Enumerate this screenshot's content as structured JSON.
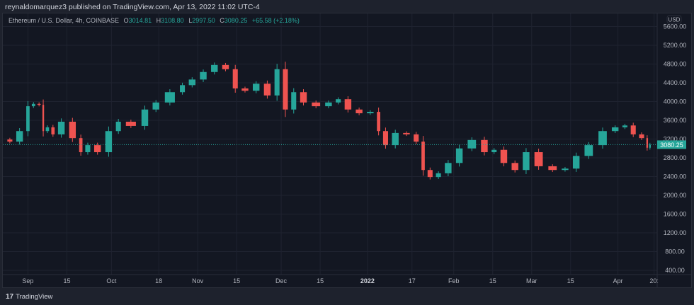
{
  "publish_line": "reynaldomarquez3 published on TradingView.com, Apr 13, 2022 11:02 UTC-4",
  "legend": {
    "symbol": "Ethereum / U.S. Dollar, 4h, COINBASE",
    "o_label": "O",
    "o": "3014.81",
    "h_label": "H",
    "h": "3108.80",
    "l_label": "L",
    "l": "2997.50",
    "c_label": "C",
    "c": "3080.25",
    "change": "+65.58 (+2.18%)"
  },
  "footer": {
    "logo": "17",
    "brand": "TradingView",
    "icon": "tradingview-logo-icon"
  },
  "colors": {
    "up": "#26a69a",
    "down": "#ef5350",
    "background": "#131722",
    "grid": "#1f2330",
    "last_price": "#26a69a"
  },
  "chart_data": {
    "type": "candlestick",
    "currency_label": "USD",
    "last_price_label": "3080.25",
    "last_price": 3080.25,
    "ylim": [
      400,
      5600
    ],
    "y_ticks": [
      "5600.00",
      "5200.00",
      "4800.00",
      "4400.00",
      "4000.00",
      "3600.00",
      "3200.00",
      "2800.00",
      "2400.00",
      "2000.00",
      "1600.00",
      "1200.00",
      "800.00",
      "400.00"
    ],
    "x_range": [
      "2021-08-24",
      "2022-04-23"
    ],
    "x_ticks": [
      {
        "label": "Sep",
        "date": "2021-09-01"
      },
      {
        "label": "15",
        "date": "2021-09-15"
      },
      {
        "label": "Oct",
        "date": "2021-10-01"
      },
      {
        "label": "18",
        "date": "2021-10-18"
      },
      {
        "label": "Nov",
        "date": "2021-11-01"
      },
      {
        "label": "15",
        "date": "2021-11-15"
      },
      {
        "label": "Dec",
        "date": "2021-12-01"
      },
      {
        "label": "15",
        "date": "2021-12-15"
      },
      {
        "label": "2022",
        "date": "2022-01-01",
        "bold": true
      },
      {
        "label": "17",
        "date": "2022-01-17"
      },
      {
        "label": "Feb",
        "date": "2022-02-01"
      },
      {
        "label": "15",
        "date": "2022-02-15"
      },
      {
        "label": "Mar",
        "date": "2022-03-01"
      },
      {
        "label": "15",
        "date": "2022-03-15"
      },
      {
        "label": "Apr",
        "date": "2022-04-01"
      },
      {
        "label": "20:",
        "date": "2022-04-14"
      }
    ],
    "grid": true,
    "closes": [
      [
        "2021-08-24",
        3190
      ],
      [
        "2021-08-27",
        3145
      ],
      [
        "2021-08-31",
        3370
      ],
      [
        "2021-09-02",
        3900
      ],
      [
        "2021-09-04",
        3950
      ],
      [
        "2021-09-06",
        3930
      ],
      [
        "2021-09-07",
        3370
      ],
      [
        "2021-09-09",
        3450
      ],
      [
        "2021-09-11",
        3300
      ],
      [
        "2021-09-15",
        3570
      ],
      [
        "2021-09-19",
        3220
      ],
      [
        "2021-09-21",
        2920
      ],
      [
        "2021-09-24",
        3070
      ],
      [
        "2021-09-28",
        2920
      ],
      [
        "2021-10-02",
        3370
      ],
      [
        "2021-10-05",
        3570
      ],
      [
        "2021-10-11",
        3480
      ],
      [
        "2021-10-15",
        3830
      ],
      [
        "2021-10-19",
        3980
      ],
      [
        "2021-10-25",
        4200
      ],
      [
        "2021-10-28",
        4350
      ],
      [
        "2021-11-01",
        4470
      ],
      [
        "2021-11-05",
        4630
      ],
      [
        "2021-11-09",
        4780
      ],
      [
        "2021-11-13",
        4690
      ],
      [
        "2021-11-16",
        4280
      ],
      [
        "2021-11-20",
        4230
      ],
      [
        "2021-11-24",
        4380
      ],
      [
        "2021-11-28",
        4130
      ],
      [
        "2021-12-01",
        4690
      ],
      [
        "2021-12-04",
        3830
      ],
      [
        "2021-12-07",
        4200
      ],
      [
        "2021-12-11",
        3980
      ],
      [
        "2021-12-16",
        3900
      ],
      [
        "2021-12-20",
        3980
      ],
      [
        "2021-12-23",
        4050
      ],
      [
        "2021-12-27",
        3830
      ],
      [
        "2021-12-31",
        3750
      ],
      [
        "2022-01-04",
        3780
      ],
      [
        "2022-01-06",
        3370
      ],
      [
        "2022-01-09",
        3070
      ],
      [
        "2022-01-13",
        3330
      ],
      [
        "2022-01-17",
        3300
      ],
      [
        "2022-01-20",
        3145
      ],
      [
        "2022-01-22",
        2540
      ],
      [
        "2022-01-25",
        2390
      ],
      [
        "2022-01-28",
        2470
      ],
      [
        "2022-02-01",
        2690
      ],
      [
        "2022-02-05",
        3000
      ],
      [
        "2022-02-10",
        3180
      ],
      [
        "2022-02-14",
        2920
      ],
      [
        "2022-02-17",
        2970
      ],
      [
        "2022-02-21",
        2690
      ],
      [
        "2022-02-25",
        2540
      ],
      [
        "2022-03-01",
        2920
      ],
      [
        "2022-03-06",
        2620
      ],
      [
        "2022-03-11",
        2540
      ],
      [
        "2022-03-15",
        2570
      ],
      [
        "2022-03-19",
        2840
      ],
      [
        "2022-03-24",
        3070
      ],
      [
        "2022-03-29",
        3370
      ],
      [
        "2022-04-02",
        3450
      ],
      [
        "2022-04-05",
        3490
      ],
      [
        "2022-04-08",
        3300
      ],
      [
        "2022-04-11",
        3220
      ],
      [
        "2022-04-12",
        3014.81
      ],
      [
        "2022-04-13",
        3080.25
      ]
    ]
  }
}
